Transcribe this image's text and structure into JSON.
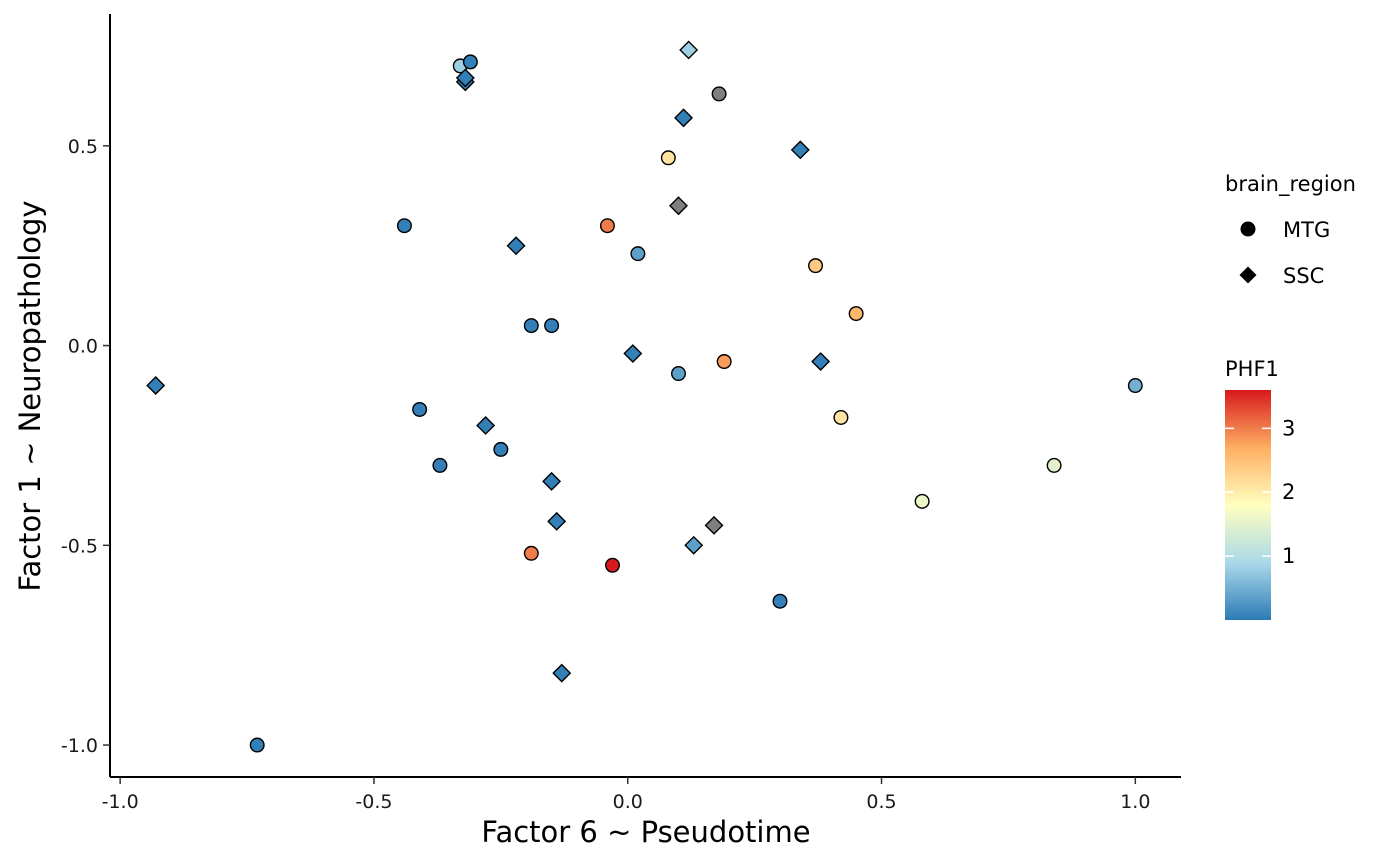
{
  "chart_data": {
    "type": "scatter",
    "title": "",
    "xlabel": "Factor 6 ~ Pseudotime",
    "ylabel": "Factor 1 ~ Neuropathology",
    "xlim": [
      -1.02,
      1.09
    ],
    "ylim": [
      -1.08,
      0.83
    ],
    "xticks": [
      -1.0,
      -0.5,
      0.0,
      0.5,
      1.0
    ],
    "xtick_labels": [
      "-1.0",
      "-0.5",
      "0.0",
      "0.5",
      "1.0"
    ],
    "yticks": [
      -1.0,
      -0.5,
      0.0,
      0.5
    ],
    "ytick_labels": [
      "-1.0",
      "-0.5",
      "0.0",
      "0.5"
    ],
    "grid": false,
    "shape_legend": {
      "title": "brain_region",
      "entries": [
        {
          "label": "MTG",
          "shape": "circle"
        },
        {
          "label": "SSC",
          "shape": "diamond"
        }
      ]
    },
    "color_legend": {
      "title": "PHF1",
      "min": 0,
      "max": 3.6,
      "ticks": [
        1,
        2,
        3
      ],
      "tick_labels": [
        "1",
        "2",
        "3"
      ],
      "colors": [
        "#2c7bb6",
        "#abd9e9",
        "#ffffbf",
        "#fdae61",
        "#d7191c"
      ]
    },
    "na_color": "#7f7f7f",
    "points": [
      {
        "x": -0.33,
        "y": 0.7,
        "region": "MTG",
        "phf1": 0.8
      },
      {
        "x": -0.31,
        "y": 0.71,
        "region": "MTG",
        "phf1": 0.05
      },
      {
        "x": -0.32,
        "y": 0.66,
        "region": "SSC",
        "phf1": 0.05
      },
      {
        "x": -0.32,
        "y": 0.67,
        "region": "SSC",
        "phf1": 0.05
      },
      {
        "x": 0.12,
        "y": 0.74,
        "region": "SSC",
        "phf1": 0.8
      },
      {
        "x": 0.18,
        "y": 0.63,
        "region": "MTG",
        "phf1": null
      },
      {
        "x": 0.11,
        "y": 0.57,
        "region": "SSC",
        "phf1": 0.05
      },
      {
        "x": 0.34,
        "y": 0.49,
        "region": "SSC",
        "phf1": 0.05
      },
      {
        "x": 0.08,
        "y": 0.47,
        "region": "MTG",
        "phf1": 2.1
      },
      {
        "x": 0.1,
        "y": 0.35,
        "region": "SSC",
        "phf1": null
      },
      {
        "x": -0.44,
        "y": 0.3,
        "region": "MTG",
        "phf1": 0.05
      },
      {
        "x": -0.04,
        "y": 0.3,
        "region": "MTG",
        "phf1": 3.0
      },
      {
        "x": -0.22,
        "y": 0.25,
        "region": "SSC",
        "phf1": 0.05
      },
      {
        "x": 0.02,
        "y": 0.23,
        "region": "MTG",
        "phf1": 0.35
      },
      {
        "x": 0.37,
        "y": 0.2,
        "region": "MTG",
        "phf1": 2.4
      },
      {
        "x": 0.45,
        "y": 0.08,
        "region": "MTG",
        "phf1": 2.6
      },
      {
        "x": -0.19,
        "y": 0.05,
        "region": "MTG",
        "phf1": 0.05
      },
      {
        "x": -0.15,
        "y": 0.05,
        "region": "MTG",
        "phf1": 0.05
      },
      {
        "x": 0.01,
        "y": -0.02,
        "region": "SSC",
        "phf1": 0.05
      },
      {
        "x": 0.38,
        "y": -0.04,
        "region": "SSC",
        "phf1": 0.05
      },
      {
        "x": 0.19,
        "y": -0.04,
        "region": "MTG",
        "phf1": 2.8
      },
      {
        "x": 0.1,
        "y": -0.07,
        "region": "MTG",
        "phf1": 0.35
      },
      {
        "x": -0.93,
        "y": -0.1,
        "region": "SSC",
        "phf1": 0.05
      },
      {
        "x": 1.0,
        "y": -0.1,
        "region": "MTG",
        "phf1": 0.5
      },
      {
        "x": -0.41,
        "y": -0.16,
        "region": "MTG",
        "phf1": 0.05
      },
      {
        "x": 0.42,
        "y": -0.18,
        "region": "MTG",
        "phf1": 2.1
      },
      {
        "x": -0.28,
        "y": -0.2,
        "region": "SSC",
        "phf1": 0.05
      },
      {
        "x": -0.25,
        "y": -0.26,
        "region": "MTG",
        "phf1": 0.05
      },
      {
        "x": -0.37,
        "y": -0.3,
        "region": "MTG",
        "phf1": 0.05
      },
      {
        "x": 0.84,
        "y": -0.3,
        "region": "MTG",
        "phf1": 1.5
      },
      {
        "x": -0.15,
        "y": -0.34,
        "region": "SSC",
        "phf1": 0.05
      },
      {
        "x": 0.58,
        "y": -0.39,
        "region": "MTG",
        "phf1": 1.6
      },
      {
        "x": -0.14,
        "y": -0.44,
        "region": "SSC",
        "phf1": 0.05
      },
      {
        "x": 0.17,
        "y": -0.45,
        "region": "SSC",
        "phf1": null
      },
      {
        "x": 0.13,
        "y": -0.5,
        "region": "SSC",
        "phf1": 0.35
      },
      {
        "x": -0.19,
        "y": -0.52,
        "region": "MTG",
        "phf1": 3.0
      },
      {
        "x": -0.03,
        "y": -0.55,
        "region": "MTG",
        "phf1": 3.6
      },
      {
        "x": 0.3,
        "y": -0.64,
        "region": "MTG",
        "phf1": 0.05
      },
      {
        "x": -0.13,
        "y": -0.82,
        "region": "SSC",
        "phf1": 0.05
      },
      {
        "x": -0.73,
        "y": -1.0,
        "region": "MTG",
        "phf1": 0.05
      }
    ]
  }
}
